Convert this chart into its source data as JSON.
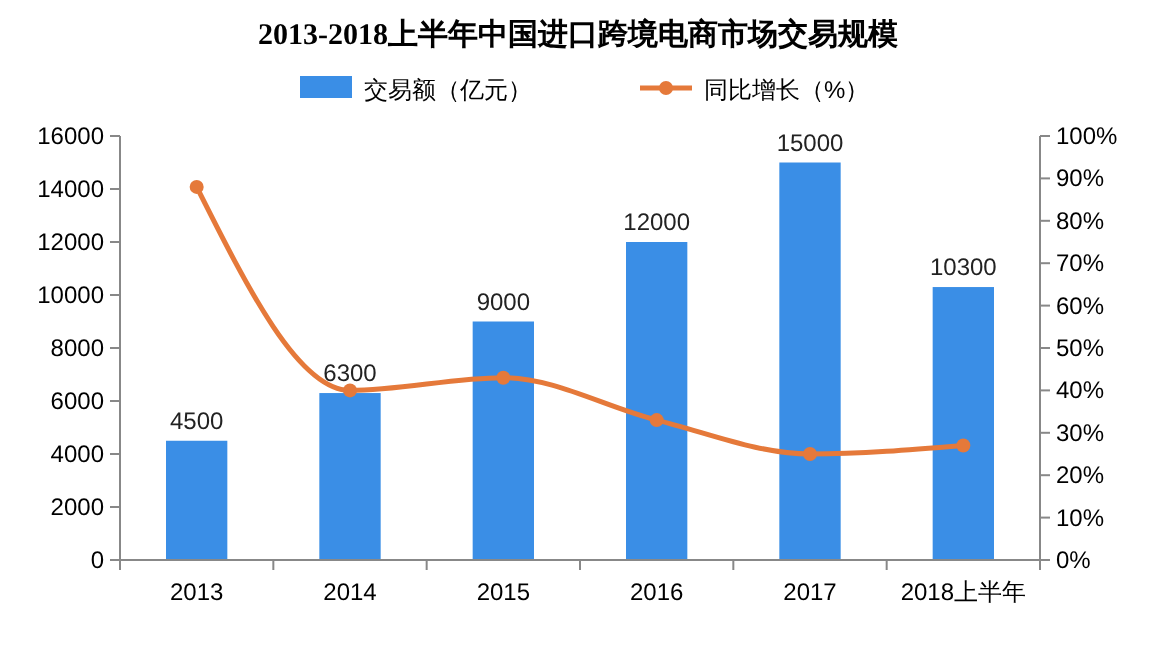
{
  "chart_data": {
    "type": "bar",
    "title": "2013-2018上半年中国进口跨境电商市场交易规模",
    "categories": [
      "2013",
      "2014",
      "2015",
      "2016",
      "2017",
      "2018上半年"
    ],
    "series": [
      {
        "name": "交易额（亿元）",
        "color": "#3a8ee6",
        "values": [
          4500,
          6300,
          9000,
          12000,
          15000,
          10300
        ],
        "data_labels": true
      },
      {
        "name": "同比增长（%）",
        "type": "line",
        "axis": "y2",
        "color": "#e5793a",
        "marker": "circle",
        "values": [
          88,
          40,
          43,
          33,
          25,
          27
        ]
      }
    ],
    "ylim": [
      0,
      16000
    ],
    "yticks": [
      0,
      2000,
      4000,
      6000,
      8000,
      10000,
      12000,
      14000,
      16000
    ],
    "y2lim": [
      0,
      100
    ],
    "y2ticks": [
      {
        "value": 0,
        "label": "0%"
      },
      {
        "value": 10,
        "label": "10%"
      },
      {
        "value": 20,
        "label": "20%"
      },
      {
        "value": 30,
        "label": "30%"
      },
      {
        "value": 40,
        "label": "40%"
      },
      {
        "value": 50,
        "label": "50%"
      },
      {
        "value": 60,
        "label": "60%"
      },
      {
        "value": 70,
        "label": "70%"
      },
      {
        "value": 80,
        "label": "80%"
      },
      {
        "value": 90,
        "label": "90%"
      },
      {
        "value": 100,
        "label": "100%"
      }
    ],
    "legend": "top",
    "grid": false
  }
}
